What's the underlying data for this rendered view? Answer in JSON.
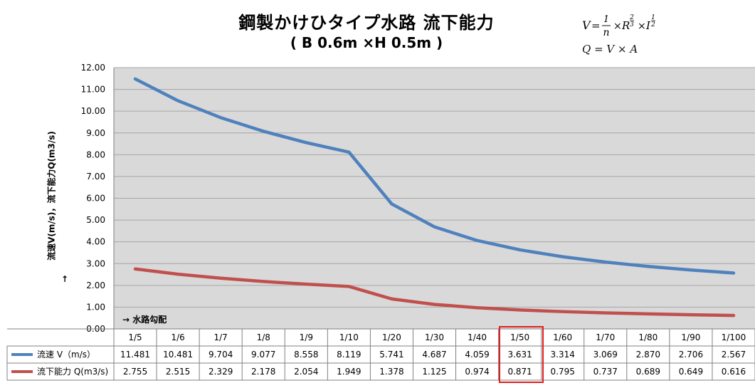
{
  "chart_data": {
    "type": "line",
    "title": "鋼製かけひタイプ水路 流下能力",
    "subtitle": "( B 0.6m ×H 0.5m )",
    "ylabel": "流速V(m/s)，流下能力Q(m3/s)",
    "ylabel_arrow": "↑",
    "xnote": "→ 水路勾配",
    "categories": [
      "1/5",
      "1/6",
      "1/7",
      "1/8",
      "1/9",
      "1/10",
      "1/20",
      "1/30",
      "1/40",
      "1/50",
      "1/60",
      "1/70",
      "1/80",
      "1/90",
      "1/100"
    ],
    "series": [
      {
        "name": "流速 V（m/s）",
        "color": "#4f81bd",
        "values": [
          11.481,
          10.481,
          9.704,
          9.077,
          8.558,
          8.119,
          5.741,
          4.687,
          4.059,
          3.631,
          3.314,
          3.069,
          2.87,
          2.706,
          2.567
        ],
        "labels": [
          "11.481",
          "10.481",
          "9.704",
          "9.077",
          "8.558",
          "8.119",
          "5.741",
          "4.687",
          "4.059",
          "3.631",
          "3.314",
          "3.069",
          "2.870",
          "2.706",
          "2.567"
        ]
      },
      {
        "name": "流下能力 Q(m3/s)",
        "color": "#c0504d",
        "values": [
          2.755,
          2.515,
          2.329,
          2.178,
          2.054,
          1.949,
          1.378,
          1.125,
          0.974,
          0.871,
          0.795,
          0.737,
          0.689,
          0.649,
          0.616
        ],
        "labels": [
          "2.755",
          "2.515",
          "2.329",
          "2.178",
          "2.054",
          "1.949",
          "1.378",
          "1.125",
          "0.974",
          "0.871",
          "0.795",
          "0.737",
          "0.689",
          "0.649",
          "0.616"
        ]
      }
    ],
    "ylim": [
      0,
      12
    ],
    "yticks": [
      "0.00",
      "1.00",
      "2.00",
      "3.00",
      "4.00",
      "5.00",
      "6.00",
      "7.00",
      "8.00",
      "9.00",
      "10.00",
      "11.00",
      "12.00"
    ],
    "grid": true,
    "legend": "data-table",
    "highlight_category": "1/50",
    "colors": {
      "plot_bg": "#d9d9d9",
      "grid": "#a6a6a6",
      "highlight": "#e02020"
    }
  },
  "formula": {
    "v_lhs": "V",
    "v_num": "1",
    "v_den": "n",
    "v_r": "R",
    "v_r_exp_num": "2",
    "v_r_exp_den": "3",
    "v_i": "I",
    "v_i_exp_num": "1",
    "v_i_exp_den": "2",
    "q_line": "Q = V × A"
  }
}
